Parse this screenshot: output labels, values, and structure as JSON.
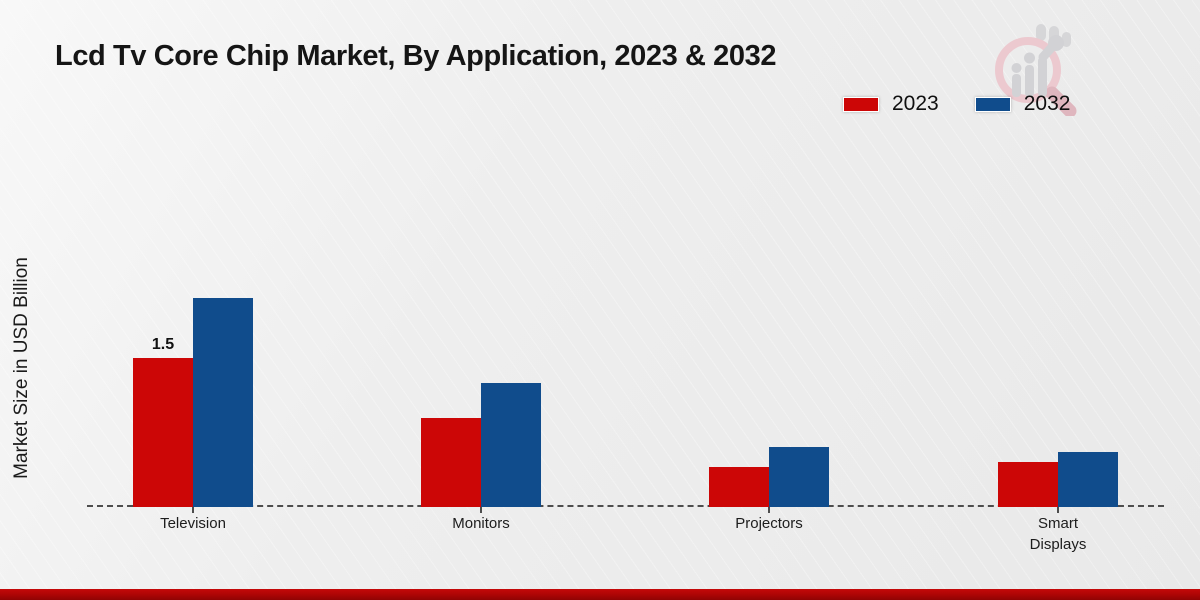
{
  "header": {
    "title": "Lcd Tv Core Chip Market, By Application, 2023 & 2032"
  },
  "legend": {
    "position": "top-right",
    "items": [
      {
        "label": "2023",
        "color": "#cc0606"
      },
      {
        "label": "2032",
        "color": "#104c8c"
      }
    ]
  },
  "chart_data": {
    "type": "bar",
    "title": "Lcd Tv Core Chip Market, By Application, 2023 & 2032",
    "categories": [
      "Television",
      "Monitors",
      "Projectors",
      "Smart Displays"
    ],
    "series": [
      {
        "name": "2023",
        "color": "#cc0606",
        "values": [
          1.5,
          0.9,
          0.4,
          0.45
        ],
        "bar_labels": [
          "1.5",
          "",
          "",
          ""
        ]
      },
      {
        "name": "2032",
        "color": "#104c8c",
        "values": [
          2.1,
          1.25,
          0.6,
          0.55
        ],
        "bar_labels": [
          "",
          "",
          "",
          ""
        ]
      }
    ],
    "xlabel": "",
    "ylabel": "Market Size in USD Billion",
    "ylim": [
      0,
      2.3
    ],
    "grid": false,
    "legend_position": "top-right",
    "baseline_style": "dashed",
    "y_axis_ticks_visible": false
  },
  "footer": {
    "band_color": "#b30606"
  },
  "watermark": {
    "icon": "magnifier-bar-chart-logo",
    "ring_color": "#ecc9cf",
    "bar_color": "#d2d2d5"
  }
}
